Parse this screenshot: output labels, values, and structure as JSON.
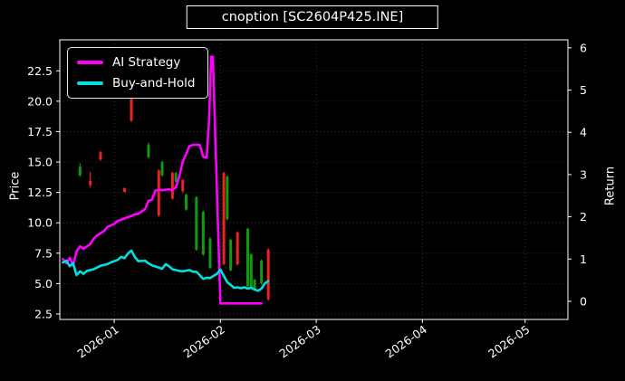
{
  "title": "cnoption [SC2604P425.INE]",
  "axes": {
    "left_label": "Price",
    "right_label": "Return"
  },
  "legend": {
    "items": [
      {
        "label": "AI Strategy",
        "color": "#ff00ff"
      },
      {
        "label": "Buy-and-Hold",
        "color": "#00e0e0"
      }
    ]
  },
  "colors": {
    "background": "#000000",
    "text": "#ffffff",
    "grid": "#8a8a8a",
    "spine": "#ffffff",
    "candle_up": "#0f9b0f",
    "candle_down": "#ee2222",
    "ai_strategy": "#ff00ff",
    "buy_and_hold": "#00e0e0"
  },
  "chart_data": {
    "type": "candlestick+line",
    "title": "cnoption [SC2604P425.INE]",
    "grid": "dotted",
    "legend_position": "upper-left",
    "x_axis": {
      "unit": "days",
      "start_date": "2025-12-17",
      "domain_days": [
        -0.9,
        147.5
      ],
      "ticks": [
        {
          "label": "2026-01",
          "day": 15
        },
        {
          "label": "2026-02",
          "day": 46
        },
        {
          "label": "2026-03",
          "day": 74
        },
        {
          "label": "2026-04",
          "day": 105
        },
        {
          "label": "2026-05",
          "day": 135
        }
      ]
    },
    "price_axis": {
      "label": "Price",
      "range": [
        2.05,
        25.05
      ],
      "ticks": [
        {
          "v": 2.5,
          "label": "2.5"
        },
        {
          "v": 5.0,
          "label": "5.0"
        },
        {
          "v": 7.5,
          "label": "7.5"
        },
        {
          "v": 10.0,
          "label": "10.0"
        },
        {
          "v": 12.5,
          "label": "12.5"
        },
        {
          "v": 15.0,
          "label": "15.0"
        },
        {
          "v": 17.5,
          "label": "17.5"
        },
        {
          "v": 20.0,
          "label": "20.0"
        },
        {
          "v": 22.5,
          "label": "22.5"
        }
      ]
    },
    "return_axis": {
      "label": "Return",
      "range": [
        -0.43,
        6.19
      ],
      "ticks": [
        {
          "v": 0,
          "label": "0"
        },
        {
          "v": 1,
          "label": "1"
        },
        {
          "v": 2,
          "label": "2"
        },
        {
          "v": 3,
          "label": "3"
        },
        {
          "v": 4,
          "label": "4"
        },
        {
          "v": 5,
          "label": "5"
        },
        {
          "v": 6,
          "label": "6"
        }
      ]
    },
    "candles": [
      {
        "day": 5,
        "open": 13.9,
        "high": 14.9,
        "low": 13.8,
        "close": 14.6,
        "dir": "up"
      },
      {
        "day": 8,
        "open": 13.45,
        "high": 14.2,
        "low": 12.9,
        "close": 13.1,
        "dir": "down"
      },
      {
        "day": 11,
        "open": 15.8,
        "high": 15.9,
        "low": 15.1,
        "close": 15.2,
        "dir": "down"
      },
      {
        "day": 18,
        "open": 12.85,
        "high": 12.9,
        "low": 12.5,
        "close": 12.55,
        "dir": "down"
      },
      {
        "day": 20,
        "open": 20.2,
        "high": 20.3,
        "low": 18.3,
        "close": 18.4,
        "dir": "down"
      },
      {
        "day": 25,
        "open": 15.4,
        "high": 16.6,
        "low": 15.3,
        "close": 16.4,
        "dir": "up"
      },
      {
        "day": 28,
        "open": 14.3,
        "high": 14.4,
        "low": 10.5,
        "close": 10.6,
        "dir": "down"
      },
      {
        "day": 29,
        "open": 13.9,
        "high": 15.1,
        "low": 13.8,
        "close": 15.0,
        "dir": "up"
      },
      {
        "day": 32,
        "open": 14.1,
        "high": 14.2,
        "low": 11.9,
        "close": 12.0,
        "dir": "down"
      },
      {
        "day": 33,
        "open": 13.4,
        "high": 14.2,
        "low": 13.3,
        "close": 14.1,
        "dir": "up"
      },
      {
        "day": 35,
        "open": 13.5,
        "high": 13.6,
        "low": 12.5,
        "close": 12.6,
        "dir": "down"
      },
      {
        "day": 36,
        "open": 11.1,
        "high": 12.4,
        "low": 11.0,
        "close": 12.3,
        "dir": "up"
      },
      {
        "day": 39,
        "open": 7.8,
        "high": 12.2,
        "low": 7.7,
        "close": 12.1,
        "dir": "up"
      },
      {
        "day": 41,
        "open": 7.4,
        "high": 11.0,
        "low": 7.3,
        "close": 10.9,
        "dir": "up"
      },
      {
        "day": 43,
        "open": 6.3,
        "high": 8.8,
        "low": 6.2,
        "close": 8.7,
        "dir": "up"
      },
      {
        "day": 47,
        "open": 14.1,
        "high": 14.2,
        "low": 6.5,
        "close": 6.6,
        "dir": "down"
      },
      {
        "day": 48,
        "open": 10.3,
        "high": 13.9,
        "low": 10.2,
        "close": 13.8,
        "dir": "up"
      },
      {
        "day": 49,
        "open": 6.1,
        "high": 8.7,
        "low": 6.0,
        "close": 8.6,
        "dir": "up"
      },
      {
        "day": 51,
        "open": 9.2,
        "high": 9.3,
        "low": 6.5,
        "close": 6.6,
        "dir": "down"
      },
      {
        "day": 54,
        "open": 4.8,
        "high": 9.6,
        "low": 4.7,
        "close": 9.5,
        "dir": "up"
      },
      {
        "day": 55,
        "open": 4.7,
        "high": 7.5,
        "low": 4.6,
        "close": 7.4,
        "dir": "up"
      },
      {
        "day": 56,
        "open": 4.6,
        "high": 5.4,
        "low": 4.5,
        "close": 5.3,
        "dir": "up"
      },
      {
        "day": 58,
        "open": 5.0,
        "high": 7.0,
        "low": 4.9,
        "close": 6.9,
        "dir": "up"
      },
      {
        "day": 60,
        "open": 7.8,
        "high": 7.9,
        "low": 3.6,
        "close": 3.7,
        "dir": "down"
      }
    ],
    "series": [
      {
        "name": "AI Strategy",
        "axis": "return",
        "color": "#ff00ff",
        "points": [
          [
            0,
            1.0
          ],
          [
            1,
            0.9
          ],
          [
            2,
            1.03
          ],
          [
            3,
            0.86
          ],
          [
            4,
            1.18
          ],
          [
            5,
            1.3
          ],
          [
            6,
            1.24
          ],
          [
            8,
            1.35
          ],
          [
            9,
            1.48
          ],
          [
            10,
            1.56
          ],
          [
            12,
            1.66
          ],
          [
            13,
            1.76
          ],
          [
            15,
            1.83
          ],
          [
            16,
            1.9
          ],
          [
            18,
            1.96
          ],
          [
            20,
            2.02
          ],
          [
            21,
            2.06
          ],
          [
            22,
            2.07
          ],
          [
            24,
            2.18
          ],
          [
            25,
            2.38
          ],
          [
            26,
            2.4
          ],
          [
            27,
            2.62
          ],
          [
            28,
            2.64
          ],
          [
            29,
            2.63
          ],
          [
            30,
            2.64
          ],
          [
            31,
            2.65
          ],
          [
            32,
            2.63
          ],
          [
            33,
            2.7
          ],
          [
            34,
            2.95
          ],
          [
            35,
            3.3
          ],
          [
            37,
            3.68
          ],
          [
            38,
            3.7
          ],
          [
            39,
            3.71
          ],
          [
            40,
            3.7
          ],
          [
            41,
            3.42
          ],
          [
            42,
            3.4
          ],
          [
            42.7,
            4.3
          ],
          [
            43.3,
            5.79
          ],
          [
            43.8,
            5.79
          ],
          [
            46,
            -0.05
          ],
          [
            58,
            -0.05
          ]
        ]
      },
      {
        "name": "Buy-and-Hold",
        "axis": "return",
        "color": "#00e0e0",
        "points": [
          [
            0,
            0.92
          ],
          [
            1,
            0.96
          ],
          [
            2,
            0.83
          ],
          [
            3,
            0.9
          ],
          [
            4,
            0.62
          ],
          [
            5,
            0.71
          ],
          [
            6,
            0.65
          ],
          [
            7,
            0.72
          ],
          [
            9,
            0.76
          ],
          [
            10,
            0.8
          ],
          [
            11,
            0.84
          ],
          [
            13,
            0.88
          ],
          [
            14,
            0.92
          ],
          [
            16,
            0.98
          ],
          [
            17,
            1.05
          ],
          [
            18,
            1.02
          ],
          [
            19,
            1.13
          ],
          [
            20,
            1.2
          ],
          [
            21,
            1.05
          ],
          [
            22,
            0.95
          ],
          [
            24,
            0.96
          ],
          [
            25,
            0.9
          ],
          [
            26,
            0.85
          ],
          [
            28,
            0.8
          ],
          [
            29,
            0.77
          ],
          [
            30,
            0.88
          ],
          [
            31,
            0.83
          ],
          [
            32,
            0.76
          ],
          [
            33,
            0.74
          ],
          [
            34,
            0.72
          ],
          [
            35,
            0.71
          ],
          [
            37,
            0.74
          ],
          [
            38,
            0.7
          ],
          [
            39,
            0.7
          ],
          [
            40,
            0.62
          ],
          [
            41,
            0.53
          ],
          [
            42,
            0.56
          ],
          [
            43,
            0.55
          ],
          [
            44,
            0.6
          ],
          [
            45,
            0.65
          ],
          [
            46,
            0.75
          ],
          [
            47,
            0.6
          ],
          [
            48,
            0.45
          ],
          [
            49,
            0.39
          ],
          [
            50,
            0.32
          ],
          [
            51,
            0.33
          ],
          [
            52,
            0.31
          ],
          [
            53,
            0.33
          ],
          [
            54,
            0.3
          ],
          [
            55,
            0.32
          ],
          [
            56,
            0.28
          ],
          [
            57,
            0.25
          ],
          [
            58,
            0.3
          ],
          [
            59,
            0.42
          ],
          [
            60,
            0.48
          ]
        ]
      }
    ]
  }
}
